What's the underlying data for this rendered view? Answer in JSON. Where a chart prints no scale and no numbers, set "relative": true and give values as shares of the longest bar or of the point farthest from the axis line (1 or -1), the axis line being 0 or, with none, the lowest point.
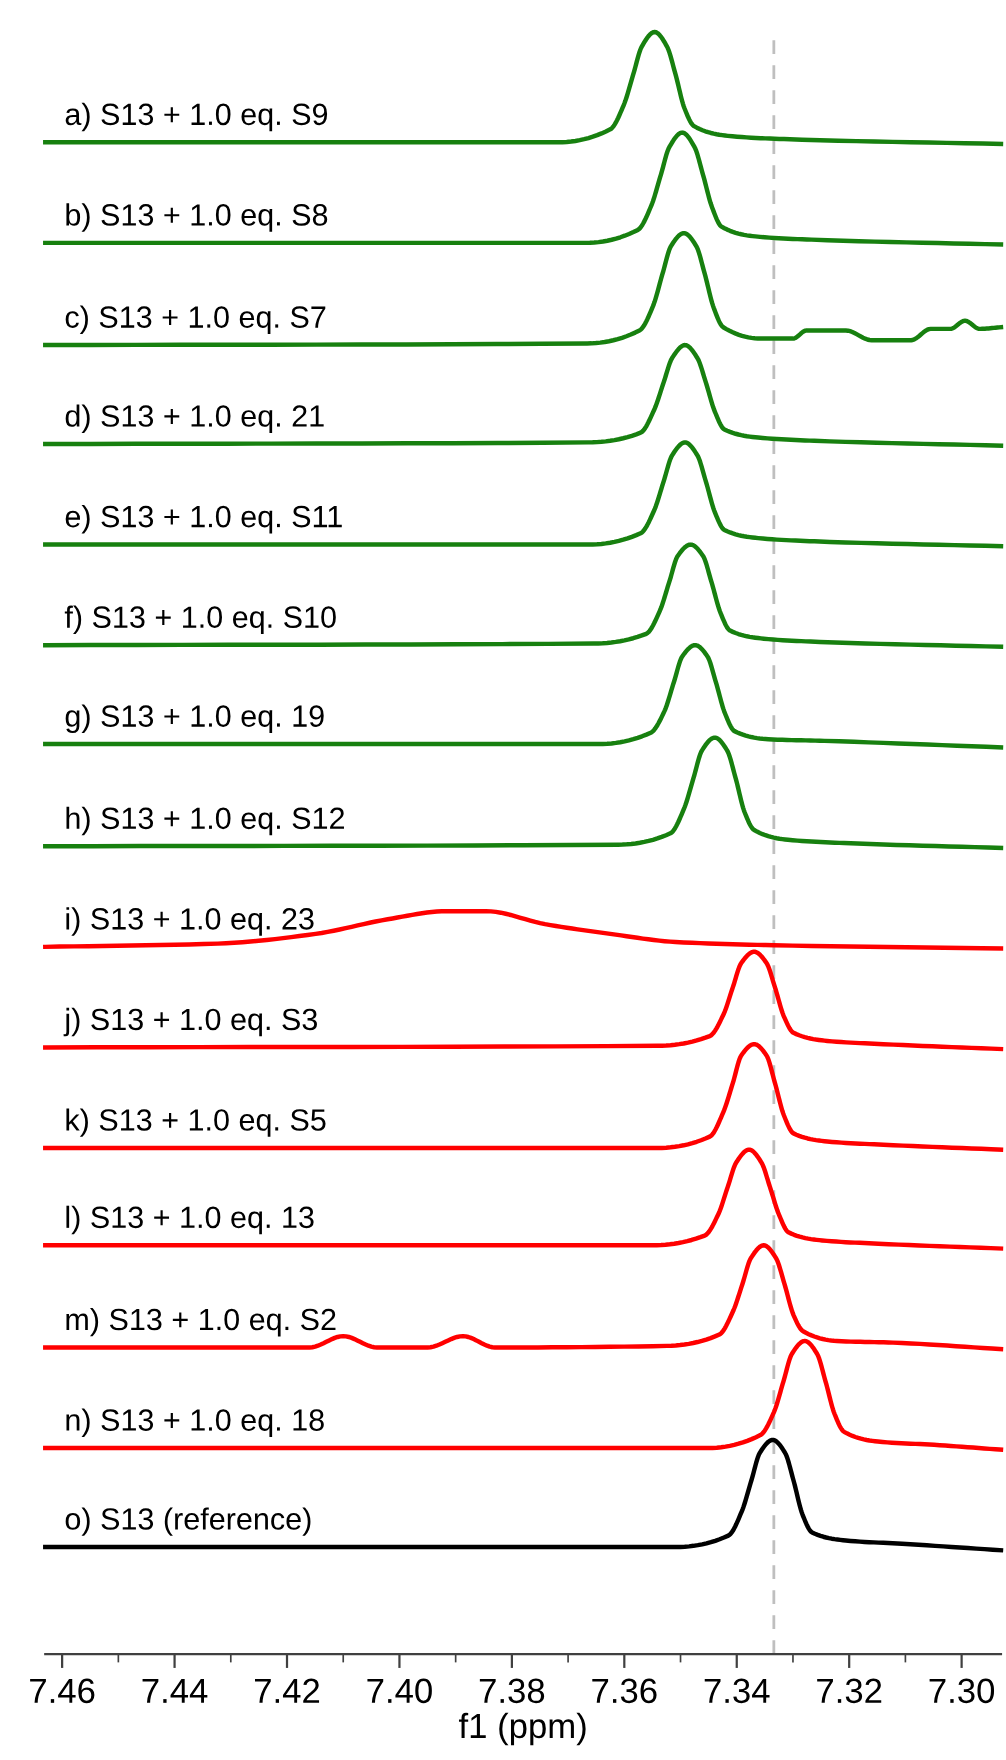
{
  "chart_data": {
    "type": "line",
    "relative": true,
    "xlabel": "f1 (ppm)",
    "xlim": [
      7.463,
      7.293
    ],
    "xticks": [
      {
        "value": 7.46,
        "label": "7.46"
      },
      {
        "value": 7.44,
        "label": "7.44"
      },
      {
        "value": 7.42,
        "label": "7.42"
      },
      {
        "value": 7.4,
        "label": "7.40"
      },
      {
        "value": 7.38,
        "label": "7.38"
      },
      {
        "value": 7.36,
        "label": "7.36"
      },
      {
        "value": 7.34,
        "label": "7.34"
      },
      {
        "value": 7.32,
        "label": "7.32"
      },
      {
        "value": 7.3,
        "label": "7.30"
      }
    ],
    "tick_labels": "x",
    "grid": false,
    "legend": false,
    "marker": "none",
    "line_style": "solid",
    "ref_lines": [
      {
        "axis": "x",
        "value": 7.3334,
        "color": "#bfbfbf",
        "line_style": "dashed"
      }
    ],
    "series": [
      {
        "name": "a) S13 + 1.0 eq. S9",
        "color": "#17800f",
        "x": [
          7.463,
          7.3718,
          7.3625,
          7.3601,
          7.3584,
          7.3569,
          7.3546,
          7.3524,
          7.3509,
          7.3493,
          7.3476,
          7.3416,
          7.3316,
          7.293
        ],
        "values": [
          0.932,
          0.932,
          0.94,
          0.955,
          0.974,
          0.991,
          1.0,
          0.991,
          0.974,
          0.953,
          0.942,
          0.936,
          0.934,
          0.931
        ]
      },
      {
        "name": "b) S13 + 1.0 eq. S8",
        "color": "#17800f",
        "x": [
          7.463,
          7.3669,
          7.3576,
          7.3552,
          7.3535,
          7.352,
          7.3497,
          7.3475,
          7.346,
          7.3444,
          7.3427,
          7.3367,
          7.3267,
          7.293
        ],
        "values": [
          0.87,
          0.87,
          0.878,
          0.893,
          0.912,
          0.929,
          0.938,
          0.929,
          0.912,
          0.892,
          0.88,
          0.874,
          0.872,
          0.869
        ]
      },
      {
        "name": "c) S13 + 1.0 eq. S7",
        "color": "#17800f",
        "x": [
          7.463,
          7.3666,
          7.3573,
          7.3549,
          7.3532,
          7.3517,
          7.3494,
          7.3472,
          7.3457,
          7.3441,
          7.3424,
          7.3357,
          7.33,
          7.3276,
          7.3206,
          7.316,
          7.309,
          7.3055,
          7.302,
          7.2994,
          7.2968,
          7.293
        ],
        "values": [
          0.807,
          0.808,
          0.816,
          0.831,
          0.851,
          0.868,
          0.876,
          0.868,
          0.851,
          0.83,
          0.818,
          0.811,
          0.811,
          0.816,
          0.816,
          0.81,
          0.81,
          0.817,
          0.817,
          0.822,
          0.817,
          0.818
        ]
      },
      {
        "name": "d) S13 + 1.0 eq. 21",
        "color": "#17800f",
        "x": [
          7.463,
          7.3664,
          7.3571,
          7.3547,
          7.353,
          7.3515,
          7.3492,
          7.347,
          7.3455,
          7.3439,
          7.3422,
          7.3362,
          7.3262,
          7.293
        ],
        "values": [
          0.746,
          0.747,
          0.753,
          0.767,
          0.784,
          0.799,
          0.807,
          0.799,
          0.784,
          0.766,
          0.755,
          0.75,
          0.748,
          0.745
        ]
      },
      {
        "name": "e) S13 + 1.0 eq. S11",
        "color": "#17800f",
        "x": [
          7.463,
          7.3664,
          7.3571,
          7.3547,
          7.353,
          7.3515,
          7.3492,
          7.347,
          7.3455,
          7.3439,
          7.3422,
          7.3362,
          7.3262,
          7.293
        ],
        "values": [
          0.684,
          0.684,
          0.691,
          0.705,
          0.723,
          0.739,
          0.747,
          0.739,
          0.723,
          0.704,
          0.693,
          0.688,
          0.686,
          0.683
        ]
      },
      {
        "name": "f) S13 + 1.0 eq. S10",
        "color": "#17800f",
        "x": [
          7.463,
          7.3654,
          7.3561,
          7.3537,
          7.352,
          7.3505,
          7.3482,
          7.346,
          7.3445,
          7.3429,
          7.3412,
          7.3352,
          7.3252,
          7.293
        ],
        "values": [
          0.622,
          0.623,
          0.629,
          0.643,
          0.661,
          0.677,
          0.684,
          0.677,
          0.661,
          0.642,
          0.631,
          0.626,
          0.624,
          0.621
        ]
      },
      {
        "name": "g) S13 + 1.0 eq. 19",
        "color": "#17800f",
        "x": [
          7.463,
          7.3646,
          7.3553,
          7.3529,
          7.3512,
          7.3497,
          7.3474,
          7.3452,
          7.3437,
          7.3421,
          7.3404,
          7.3344,
          7.3244,
          7.293
        ],
        "values": [
          0.561,
          0.561,
          0.568,
          0.581,
          0.599,
          0.615,
          0.622,
          0.615,
          0.599,
          0.58,
          0.569,
          0.564,
          0.563,
          0.559
        ]
      },
      {
        "name": "h) S13 + 1.0 eq. S12",
        "color": "#17800f",
        "x": [
          7.463,
          7.3611,
          7.3518,
          7.3494,
          7.3477,
          7.3462,
          7.3439,
          7.3417,
          7.3402,
          7.3386,
          7.3369,
          7.3309,
          7.3209,
          7.293
        ],
        "values": [
          0.498,
          0.499,
          0.506,
          0.521,
          0.54,
          0.557,
          0.565,
          0.557,
          0.54,
          0.519,
          0.508,
          0.502,
          0.5,
          0.497
        ]
      },
      {
        "name": "i) S13 + 1.0 eq. 23",
        "color": "#ff0000",
        "x": [
          7.463,
          7.4323,
          7.4149,
          7.4021,
          7.3916,
          7.3846,
          7.3741,
          7.3625,
          7.3509,
          7.3334,
          7.293
        ],
        "values": [
          0.436,
          0.438,
          0.444,
          0.453,
          0.458,
          0.458,
          0.45,
          0.444,
          0.439,
          0.437,
          0.435
        ]
      },
      {
        "name": "j) S13 + 1.0 eq. S3",
        "color": "#ff0000",
        "x": [
          7.463,
          7.3541,
          7.3448,
          7.3424,
          7.3407,
          7.3392,
          7.3369,
          7.3347,
          7.3332,
          7.3316,
          7.3299,
          7.3239,
          7.3139,
          7.293
        ],
        "values": [
          0.374,
          0.375,
          0.381,
          0.394,
          0.411,
          0.426,
          0.433,
          0.426,
          0.411,
          0.393,
          0.383,
          0.378,
          0.376,
          0.373
        ]
      },
      {
        "name": "k) S13 + 1.0 eq. S5",
        "color": "#ff0000",
        "x": [
          7.463,
          7.3541,
          7.3448,
          7.3424,
          7.3407,
          7.3392,
          7.3369,
          7.3347,
          7.3332,
          7.3316,
          7.3299,
          7.3239,
          7.3139,
          7.293
        ],
        "values": [
          0.312,
          0.312,
          0.319,
          0.334,
          0.352,
          0.369,
          0.376,
          0.369,
          0.352,
          0.332,
          0.321,
          0.316,
          0.314,
          0.311
        ]
      },
      {
        "name": "l) S13 + 1.0 eq. 13",
        "color": "#ff0000",
        "x": [
          7.463,
          7.355,
          7.3457,
          7.3433,
          7.3416,
          7.3401,
          7.3378,
          7.3356,
          7.3341,
          7.3325,
          7.3308,
          7.3248,
          7.3148,
          7.293
        ],
        "values": [
          0.252,
          0.252,
          0.258,
          0.271,
          0.288,
          0.303,
          0.311,
          0.303,
          0.288,
          0.271,
          0.26,
          0.255,
          0.253,
          0.25
        ]
      },
      {
        "name": "m) S13 + 1.0 eq. S2",
        "color": "#ff0000",
        "x": [
          7.463,
          7.416,
          7.41,
          7.404,
          7.395,
          7.3887,
          7.383,
          7.3524,
          7.3431,
          7.3407,
          7.339,
          7.3375,
          7.3352,
          7.333,
          7.3315,
          7.3299,
          7.3282,
          7.3222,
          7.3122,
          7.293
        ],
        "values": [
          0.189,
          0.189,
          0.196,
          0.189,
          0.189,
          0.196,
          0.189,
          0.19,
          0.197,
          0.211,
          0.228,
          0.244,
          0.252,
          0.244,
          0.228,
          0.209,
          0.199,
          0.193,
          0.192,
          0.188
        ]
      },
      {
        "name": "n) S13 + 1.0 eq. 18",
        "color": "#ff0000",
        "x": [
          7.463,
          7.3451,
          7.3358,
          7.3334,
          7.3317,
          7.3302,
          7.3279,
          7.3257,
          7.3242,
          7.3226,
          7.3209,
          7.3149,
          7.3049,
          7.293
        ],
        "values": [
          0.127,
          0.127,
          0.135,
          0.149,
          0.168,
          0.185,
          0.193,
          0.185,
          0.168,
          0.148,
          0.137,
          0.131,
          0.129,
          0.126
        ]
      },
      {
        "name": "o) S13 (reference)",
        "color": "#000000",
        "x": [
          7.463,
          7.3508,
          7.3415,
          7.3391,
          7.3374,
          7.3359,
          7.3336,
          7.3314,
          7.3299,
          7.3283,
          7.3266,
          7.3206,
          7.3106,
          7.293
        ],
        "values": [
          0.066,
          0.066,
          0.073,
          0.088,
          0.107,
          0.124,
          0.132,
          0.124,
          0.107,
          0.086,
          0.075,
          0.07,
          0.068,
          0.064
        ]
      }
    ]
  }
}
